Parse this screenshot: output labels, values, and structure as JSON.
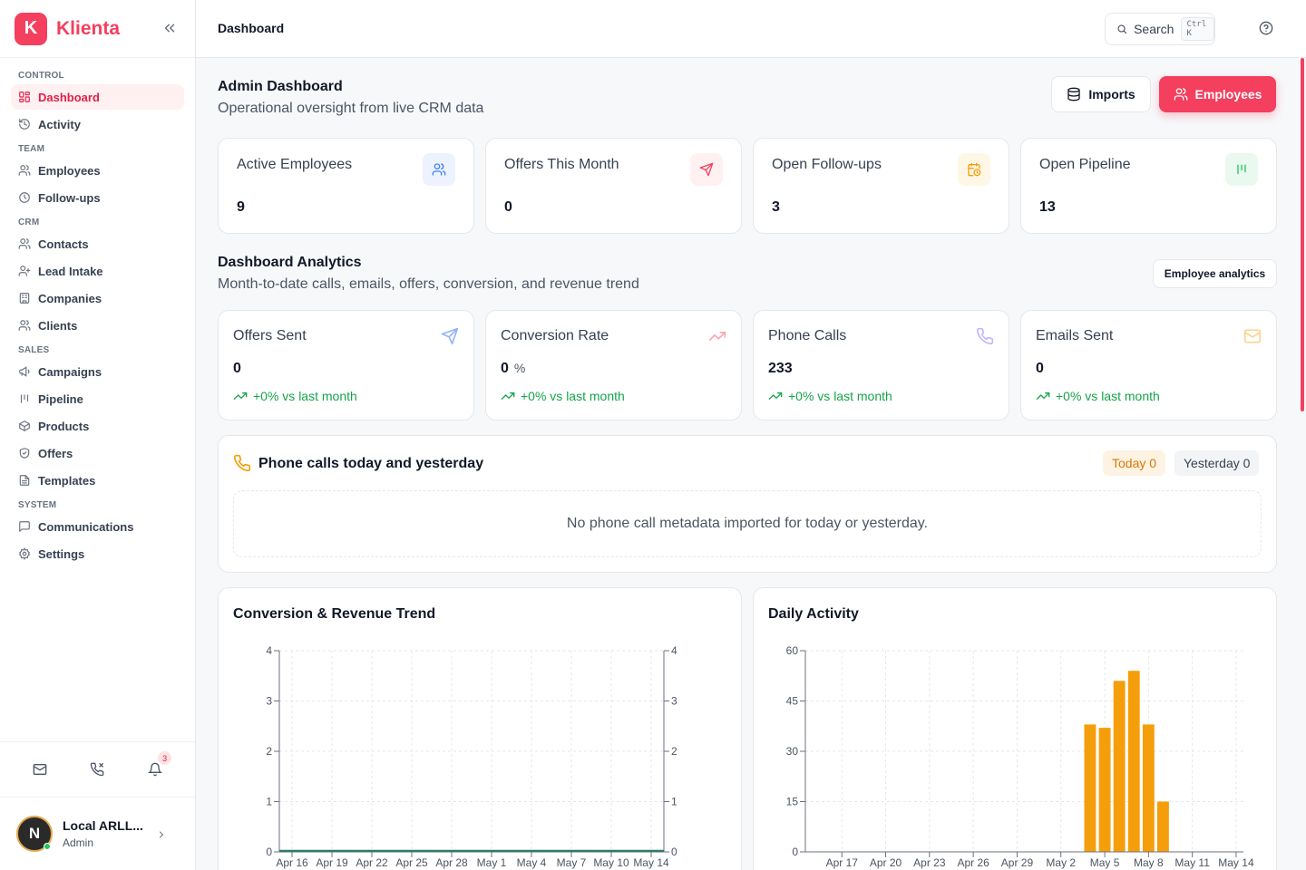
{
  "brand": {
    "logo_letter": "K",
    "name": "Klienta"
  },
  "sidebar": {
    "sections": [
      {
        "title": "CONTROL",
        "items": [
          {
            "label": "Dashboard",
            "icon": "grid-icon",
            "active": true
          },
          {
            "label": "Activity",
            "icon": "history-icon"
          }
        ]
      },
      {
        "title": "TEAM",
        "items": [
          {
            "label": "Employees",
            "icon": "users-icon"
          },
          {
            "label": "Follow-ups",
            "icon": "clock-icon"
          }
        ]
      },
      {
        "title": "CRM",
        "items": [
          {
            "label": "Contacts",
            "icon": "users-icon"
          },
          {
            "label": "Lead Intake",
            "icon": "user-plus-icon"
          },
          {
            "label": "Companies",
            "icon": "building-icon"
          },
          {
            "label": "Clients",
            "icon": "users-icon"
          }
        ]
      },
      {
        "title": "SALES",
        "items": [
          {
            "label": "Campaigns",
            "icon": "megaphone-icon"
          },
          {
            "label": "Pipeline",
            "icon": "pipeline-icon"
          },
          {
            "label": "Products",
            "icon": "package-icon"
          },
          {
            "label": "Offers",
            "icon": "shield-check-icon"
          },
          {
            "label": "Templates",
            "icon": "file-text-icon"
          }
        ]
      },
      {
        "title": "SYSTEM",
        "items": [
          {
            "label": "Communications",
            "icon": "message-square-icon"
          },
          {
            "label": "Settings",
            "icon": "gear-icon"
          }
        ]
      }
    ],
    "notification_count": "3",
    "user": {
      "initial": "N",
      "name": "Local ARLL...",
      "role": "Admin"
    }
  },
  "topbar": {
    "page": "Dashboard",
    "search_label": "Search",
    "search_shortcut": "Ctrl K"
  },
  "header": {
    "title": "Admin Dashboard",
    "subtitle": "Operational oversight from live CRM data",
    "imports_label": "Imports",
    "employees_label": "Employees"
  },
  "stats": [
    {
      "label": "Active Employees",
      "value": "9",
      "icon": "users-icon",
      "bg": "#eef2ff",
      "fg": "#3b82f6"
    },
    {
      "label": "Offers This Month",
      "value": "0",
      "icon": "send-icon",
      "bg": "#fff1f2",
      "fg": "#f43f5e"
    },
    {
      "label": "Open Follow-ups",
      "value": "3",
      "icon": "calendar-clock-icon",
      "bg": "#fff7e6",
      "fg": "#f59e0b"
    },
    {
      "label": "Open Pipeline",
      "value": "13",
      "icon": "pipeline-icon",
      "bg": "#e9f9f0",
      "fg": "#22c55e"
    }
  ],
  "analytics": {
    "title": "Dashboard Analytics",
    "subtitle": "Month-to-date calls, emails, offers, conversion, and revenue trend",
    "employee_analytics_label": "Employee analytics",
    "kpis": [
      {
        "label": "Offers Sent",
        "value": "0",
        "unit": "",
        "trend": "+0% vs last month",
        "icon": "send-icon",
        "color": "#93b4f6"
      },
      {
        "label": "Conversion Rate",
        "value": "0",
        "unit": "%",
        "trend": "+0% vs last month",
        "icon": "trending-up-icon",
        "color": "#fca5b5"
      },
      {
        "label": "Phone Calls",
        "value": "233",
        "unit": "",
        "trend": "+0% vs last month",
        "icon": "phone-icon",
        "color": "#c4b5fd"
      },
      {
        "label": "Emails Sent",
        "value": "0",
        "unit": "",
        "trend": "+0% vs last month",
        "icon": "mail-icon",
        "color": "#fcd38d"
      }
    ]
  },
  "calls": {
    "title": "Phone calls today and yesterday",
    "today": "Today 0",
    "yesterday": "Yesterday 0",
    "empty": "No phone call metadata imported for today or yesterday."
  },
  "chart_data": [
    {
      "type": "line",
      "title": "Conversion & Revenue Trend",
      "x": [
        "Apr 16",
        "Apr 19",
        "Apr 22",
        "Apr 25",
        "Apr 28",
        "May 1",
        "May 4",
        "May 7",
        "May 10",
        "May 14"
      ],
      "y_left_ticks": [
        0,
        1,
        2,
        3,
        4
      ],
      "y_right_ticks": [
        0,
        1,
        2,
        3,
        4
      ],
      "ylim": [
        0,
        4
      ],
      "series": [
        {
          "values": [
            0,
            0,
            0,
            0,
            0,
            0,
            0,
            0,
            0,
            0
          ],
          "color": "#2f7a6a"
        }
      ],
      "grid": true
    },
    {
      "type": "bar",
      "title": "Daily Activity",
      "x_ticks": [
        "Apr 17",
        "Apr 20",
        "Apr 23",
        "Apr 26",
        "Apr 29",
        "May 2",
        "May 5",
        "May 8",
        "May 11",
        "May 14"
      ],
      "y_ticks": [
        0,
        15,
        30,
        45,
        60
      ],
      "ylim": [
        0,
        60
      ],
      "categories": [
        "Apr 15",
        "Apr 16",
        "Apr 17",
        "Apr 18",
        "Apr 19",
        "Apr 20",
        "Apr 21",
        "Apr 22",
        "Apr 23",
        "Apr 24",
        "Apr 25",
        "Apr 26",
        "Apr 27",
        "Apr 28",
        "Apr 29",
        "Apr 30",
        "May 1",
        "May 2",
        "May 3",
        "May 4",
        "May 5",
        "May 6",
        "May 7",
        "May 8",
        "May 9",
        "May 10",
        "May 11",
        "May 12",
        "May 13",
        "May 14"
      ],
      "values": [
        0,
        0,
        0,
        0,
        0,
        0,
        0,
        0,
        0,
        0,
        0,
        0,
        0,
        0,
        0,
        0,
        0,
        0,
        0,
        38,
        37,
        51,
        54,
        38,
        15,
        0,
        0,
        0,
        0,
        0
      ],
      "color": "#f59e0b",
      "grid": true
    }
  ]
}
